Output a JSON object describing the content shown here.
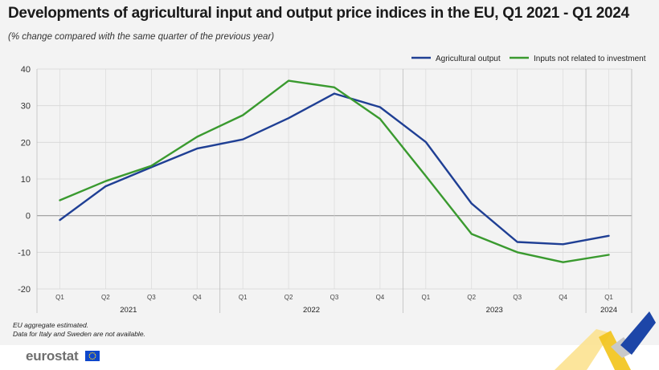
{
  "title": "Developments of agricultural input and output price indices in the EU, Q1 2021 - Q1 2024",
  "subtitle": "(% change compared with the same quarter of the previous year)",
  "notes": [
    "EU aggregate estimated.",
    "Data for Italy and Sweden are not available."
  ],
  "logo": {
    "text": "eurostat"
  },
  "colors": {
    "agricultural_output": "#1f3f94",
    "inputs_not_related": "#3a9a2f",
    "grid": "#d6d6d6",
    "zero_line": "#9a9a9a",
    "background": "#f3f3f3"
  },
  "chart_data": {
    "type": "line",
    "title": "Developments of agricultural input and output price indices in the EU, Q1 2021 - Q1 2024",
    "subtitle": "(% change compared with the same quarter of the previous year)",
    "categories": [
      "Q1",
      "Q2",
      "Q3",
      "Q4",
      "Q1",
      "Q2",
      "Q3",
      "Q4",
      "Q1",
      "Q2",
      "Q3",
      "Q4",
      "Q1"
    ],
    "year_groups": [
      {
        "label": "2021",
        "start": 0,
        "end": 3
      },
      {
        "label": "2022",
        "start": 4,
        "end": 7
      },
      {
        "label": "2023",
        "start": 8,
        "end": 11
      },
      {
        "label": "2024",
        "start": 12,
        "end": 12
      }
    ],
    "series": [
      {
        "name": "Agricultural output",
        "color": "#1f3f94",
        "values": [
          -1.2,
          8.0,
          13.2,
          18.3,
          20.8,
          26.6,
          33.3,
          29.6,
          20.1,
          3.3,
          -7.2,
          -7.8,
          -5.5
        ]
      },
      {
        "name": "Inputs not related to investment",
        "color": "#3a9a2f",
        "values": [
          4.2,
          9.4,
          13.6,
          21.5,
          27.4,
          36.8,
          35.0,
          26.4,
          10.8,
          -5.0,
          -10.0,
          -12.7,
          -10.7
        ]
      }
    ],
    "ylim": [
      -20,
      40
    ],
    "yticks": [
      -20,
      -10,
      0,
      10,
      20,
      30,
      40
    ],
    "xlabel": "",
    "ylabel": "",
    "grid": true,
    "legend_position": "top-right"
  }
}
